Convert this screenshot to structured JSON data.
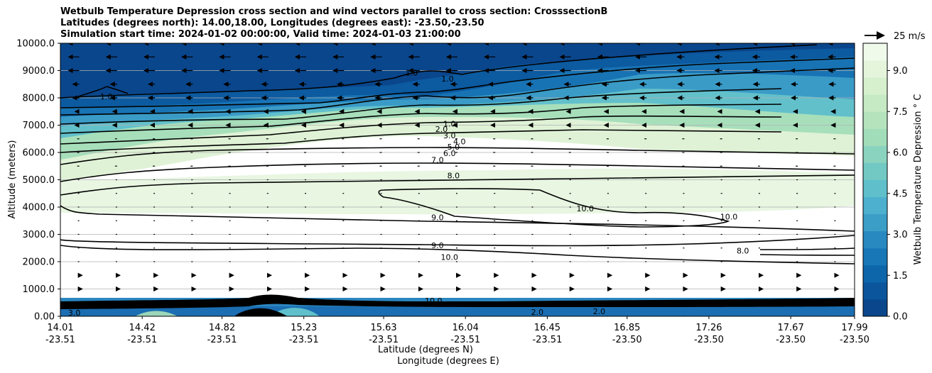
{
  "chart_data": {
    "type": "contour",
    "title_lines": [
      "Wetbulb Temperature Depression cross section and wind vectors parallel to cross section: CrosssectionB",
      "Latitudes (degrees north): 14.00,18.00, Longitudes (degrees east): -23.50,-23.50",
      "Simulation start time: 2024-01-02 00:00:00, Valid time: 2024-01-03 21:00:00"
    ],
    "ylabel": "Altitude (meters)",
    "xlabel_lat": "Latitude (degrees N)",
    "xlabel_lon": "Longitude (degrees E)",
    "ylim": [
      0,
      10000
    ],
    "yticks": [
      "0.00",
      "1000.0",
      "2000.0",
      "3000.0",
      "4000.0",
      "5000.0",
      "6000.0",
      "7000.0",
      "8000.0",
      "9000.0",
      "10000.0"
    ],
    "xlim": [
      14.01,
      17.99
    ],
    "xticks": [
      {
        "lat": "14.01",
        "lon": "-23.51"
      },
      {
        "lat": "14.42",
        "lon": "-23.51"
      },
      {
        "lat": "14.82",
        "lon": "-23.51"
      },
      {
        "lat": "15.23",
        "lon": "-23.51"
      },
      {
        "lat": "15.63",
        "lon": "-23.51"
      },
      {
        "lat": "16.04",
        "lon": "-23.51"
      },
      {
        "lat": "16.45",
        "lon": "-23.51"
      },
      {
        "lat": "16.85",
        "lon": "-23.50"
      },
      {
        "lat": "17.26",
        "lon": "-23.50"
      },
      {
        "lat": "17.67",
        "lon": "-23.50"
      },
      {
        "lat": "17.99",
        "lon": "-23.50"
      }
    ],
    "colorbar": {
      "label": "Wetbulb Temperature Depression ° C",
      "range": [
        0,
        10
      ],
      "ticks": [
        "0.0",
        "1.5",
        "3.0",
        "4.5",
        "6.0",
        "7.5",
        "9.0"
      ],
      "colors": [
        "#0a468c",
        "#0b559c",
        "#0d65aa",
        "#1877b6",
        "#2789bf",
        "#3b9ec7",
        "#4db0cf",
        "#5fc0cc",
        "#72c9c4",
        "#8ad3bf",
        "#a2ddba",
        "#b5e4bc",
        "#c6eac3",
        "#d6f0ce",
        "#e4f5dc",
        "#f0faeb"
      ]
    },
    "wind_reference": "25 m/s",
    "contour_levels": [
      "1.0",
      "2.0",
      "3.0",
      "4.0",
      "5.0",
      "6.0",
      "7.0",
      "8.0",
      "9.0",
      "10.0"
    ],
    "contour_labels": [
      {
        "text": "1.0",
        "lat": 15.77,
        "alt": 8870
      },
      {
        "text": "1.0",
        "lat": 15.95,
        "alt": 8650
      },
      {
        "text": "1.0",
        "lat": 15.96,
        "alt": 7000
      },
      {
        "text": "2.0",
        "lat": 15.92,
        "alt": 6800
      },
      {
        "text": "3.0",
        "lat": 15.96,
        "alt": 6570
      },
      {
        "text": "4.0",
        "lat": 16.01,
        "alt": 6350
      },
      {
        "text": "5.0",
        "lat": 15.98,
        "alt": 6150
      },
      {
        "text": "6.0",
        "lat": 15.96,
        "alt": 5920
      },
      {
        "text": "7.0",
        "lat": 15.9,
        "alt": 5680
      },
      {
        "text": "8.0",
        "lat": 15.98,
        "alt": 5100
      },
      {
        "text": "9.0",
        "lat": 15.9,
        "alt": 3570
      },
      {
        "text": "10.0",
        "lat": 16.64,
        "alt": 3900
      },
      {
        "text": "10.0",
        "lat": 17.36,
        "alt": 3600
      },
      {
        "text": "9.0",
        "lat": 15.9,
        "alt": 2540
      },
      {
        "text": "10.0",
        "lat": 15.96,
        "alt": 2120
      },
      {
        "text": "8.0",
        "lat": 17.43,
        "alt": 2350
      },
      {
        "text": "1.0",
        "lat": 14.24,
        "alt": 8000
      },
      {
        "text": "10.0",
        "lat": 15.88,
        "alt": 520
      },
      {
        "text": "2.0",
        "lat": 16.4,
        "alt": 110
      },
      {
        "text": "2.0",
        "lat": 16.71,
        "alt": 130
      },
      {
        "text": "3.0",
        "lat": 14.08,
        "alt": 80
      }
    ]
  }
}
